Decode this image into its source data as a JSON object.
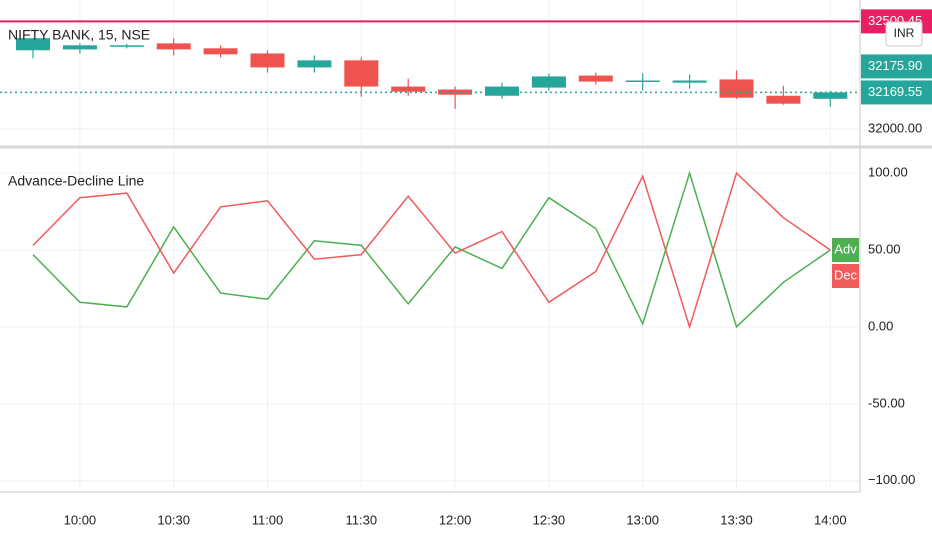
{
  "chart_data": [
    {
      "type": "candlestick",
      "title": "NIFTY BANK, 15, NSE",
      "currency": "INR",
      "open": [
        32366,
        32370,
        32386,
        32398,
        32375,
        32351,
        32286,
        32319,
        32197,
        32183,
        32154,
        32192,
        32248,
        32220,
        32215,
        32230,
        32154,
        32140
      ],
      "high": [
        32422,
        32398,
        32395,
        32422,
        32389,
        32366,
        32342,
        32333,
        32234,
        32197,
        32215,
        32258,
        32262,
        32258,
        32253,
        32272,
        32201,
        32178
      ],
      "low": [
        32328,
        32351,
        32375,
        32342,
        32333,
        32262,
        32262,
        32150,
        32154,
        32093,
        32140,
        32178,
        32206,
        32178,
        32187,
        32140,
        32112,
        32103
      ],
      "close": [
        32422,
        32389,
        32389,
        32370,
        32347,
        32286,
        32319,
        32197,
        32173,
        32159,
        32197,
        32244,
        32220,
        32225,
        32225,
        32145,
        32117,
        32169.55
      ],
      "up_color": "#26a69a",
      "down_color": "#ef5350",
      "ylim": [
        31920,
        32600
      ],
      "yticks": [
        {
          "value": 32000,
          "label": "32000.00"
        }
      ],
      "price_lines": [
        {
          "value": 32169.55,
          "label": "32169.55",
          "color": "#26a69a",
          "style": "dotted"
        },
        {
          "value": 32500.45,
          "label": "32500.45",
          "color": "#e91e63",
          "style": "solid"
        }
      ],
      "price_labels": [
        {
          "value": 32175.9,
          "label": "32175.90",
          "color": "#26a69a"
        }
      ],
      "grid": true
    },
    {
      "type": "line",
      "title": "Advance-Decline Line",
      "categories": [
        null,
        "10:00",
        null,
        "10:30",
        null,
        "11:00",
        null,
        "11:30",
        null,
        "12:00",
        null,
        "12:30",
        null,
        "13:00",
        null,
        "13:30",
        null,
        "14:00"
      ],
      "series": [
        {
          "name": "Adv",
          "color": "#4caf50",
          "values": [
            47,
            16,
            13,
            65,
            22,
            18,
            56,
            53,
            15,
            52,
            38,
            84,
            64,
            2,
            100,
            0,
            29,
            50
          ]
        },
        {
          "name": "Dec",
          "color": "#f05a5a",
          "values": [
            53,
            84,
            87,
            35,
            78,
            82,
            44,
            47,
            85,
            48,
            62,
            16,
            36,
            98,
            0,
            100,
            71,
            50
          ]
        }
      ],
      "ylim": [
        -106,
        115
      ],
      "yticks": [
        {
          "value": 100,
          "label": "100.00"
        },
        {
          "value": 50,
          "label": "50.00"
        },
        {
          "value": 0,
          "label": "0.00"
        },
        {
          "value": -50,
          "label": "-50.00"
        },
        {
          "value": -100,
          "label": "−100.00"
        }
      ],
      "grid": true
    }
  ]
}
